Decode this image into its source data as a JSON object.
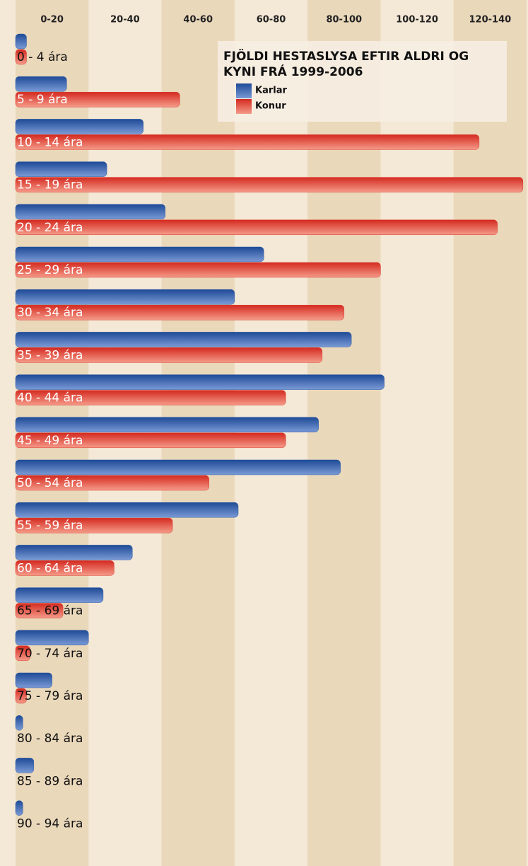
{
  "chart_data": {
    "type": "hbar",
    "title_lines": [
      "FJÖLDI HESTASLYSA EFTIR ALDRI OG",
      "KYNI FRÁ 1999-2006"
    ],
    "categories": [
      "0 - 4 ára",
      "5 - 9 ára",
      "10 - 14 ára",
      "15 - 19 ára",
      "20 - 24 ára",
      "25 - 29 ára",
      "30 - 34 ára",
      "35 - 39 ára",
      "40 - 44 ára",
      "45 - 49 ára",
      "50 - 54 ára",
      "55 - 59 ára",
      "60 - 64 ára",
      "65 - 69 ára",
      "70 - 74 ára",
      "75 - 79 ára",
      "80 - 84 ára",
      "85 - 89 ára",
      "90 - 94 ára"
    ],
    "series": [
      {
        "name": "Karlar",
        "color": "#2c5ca8",
        "values": [
          3,
          14,
          35,
          25,
          41,
          68,
          60,
          92,
          101,
          83,
          89,
          61,
          32,
          24,
          20,
          10,
          2,
          5,
          2
        ]
      },
      {
        "name": "Konur",
        "color": "#dc3a2e",
        "values": [
          3,
          45,
          127,
          139,
          132,
          100,
          90,
          84,
          74,
          74,
          53,
          43,
          27,
          13,
          4,
          3,
          0,
          0,
          0
        ]
      }
    ],
    "xlim": [
      0,
      140
    ],
    "xticks": [
      {
        "value": 10,
        "label": "0-20"
      },
      {
        "value": 30,
        "label": "20-40"
      },
      {
        "value": 50,
        "label": "40-60"
      },
      {
        "value": 70,
        "label": "60-80"
      },
      {
        "value": 90,
        "label": "80-100"
      },
      {
        "value": 110,
        "label": "100-120"
      },
      {
        "value": 130,
        "label": "120-140"
      }
    ]
  }
}
